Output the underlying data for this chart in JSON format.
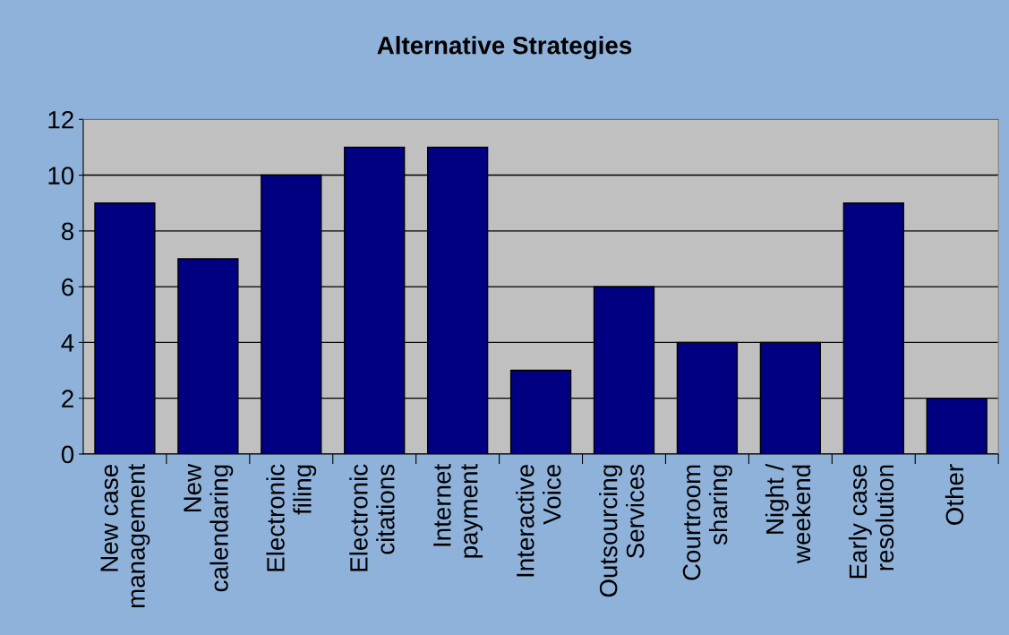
{
  "chart_data": {
    "type": "bar",
    "title": "Alternative Strategies",
    "categories": [
      "New case\nmanagement",
      "New\ncalendaring",
      "Electronic\nfiling",
      "Electronic\ncitations",
      "Internet\npayment",
      "Interactive\nVoice",
      "Outsourcing\nServices",
      "Courtroom\nsharing",
      "Night /\nweekend",
      "Early case\nresolution",
      "Other"
    ],
    "values": [
      9,
      7,
      10,
      11,
      11,
      3,
      6,
      4,
      4,
      9,
      2
    ],
    "color": "#000080",
    "ylim": [
      0,
      12
    ],
    "yticks": [
      0,
      2,
      4,
      6,
      8,
      10,
      12
    ],
    "grid": "y",
    "legend": false
  }
}
